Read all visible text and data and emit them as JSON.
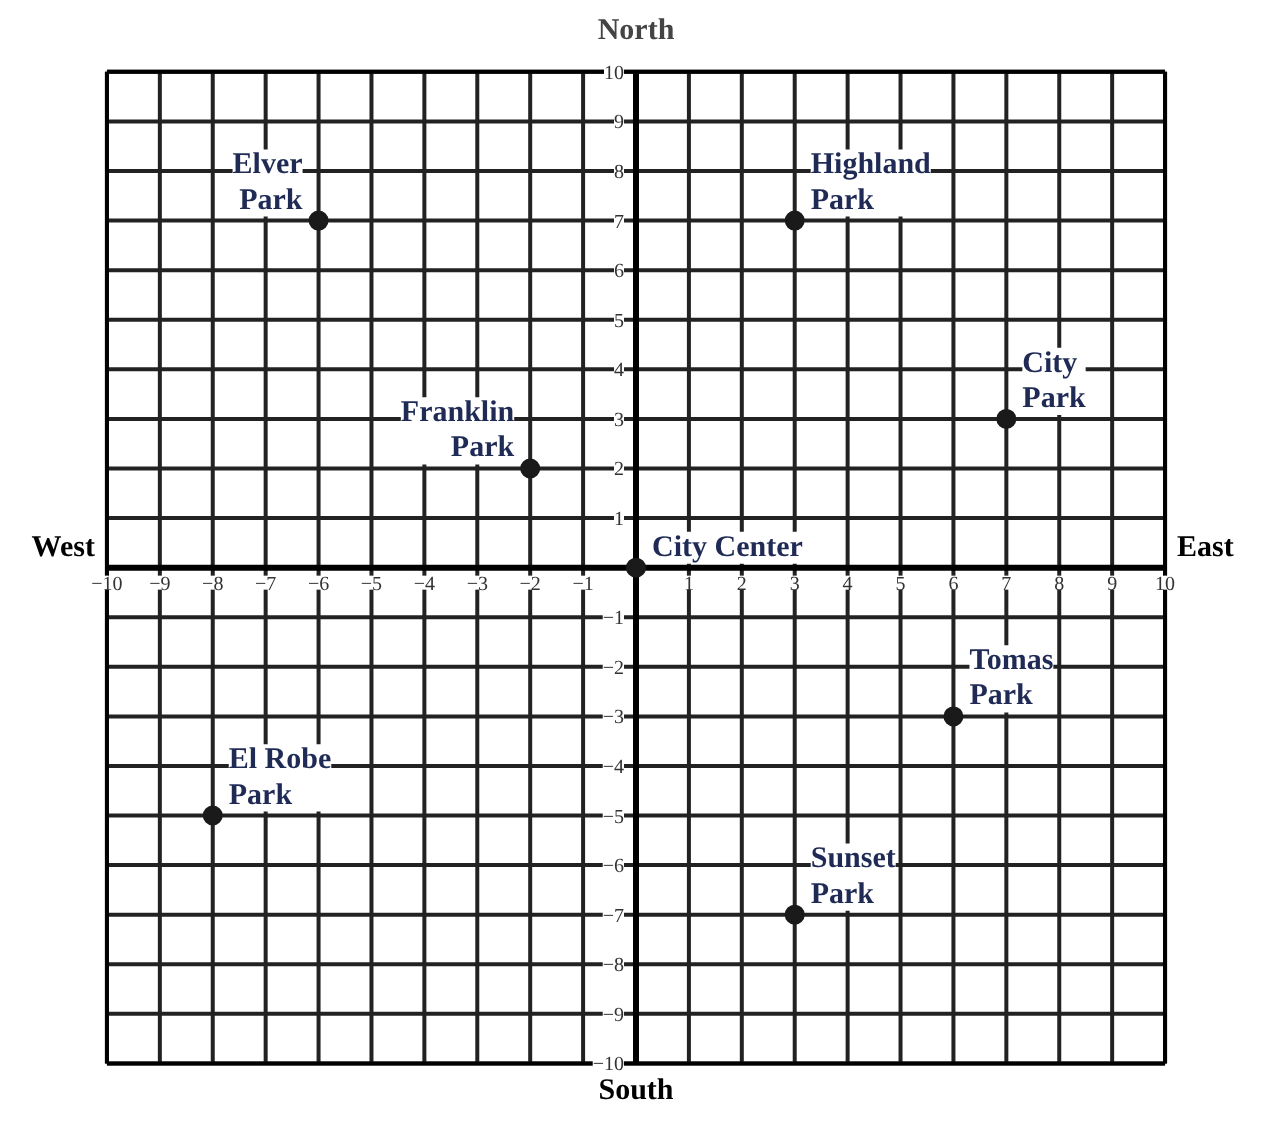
{
  "chart_data": {
    "type": "scatter",
    "title": "North",
    "xlabel": "South",
    "ylabel": "West",
    "y2label": "East",
    "x": [
      -6,
      3,
      7,
      -2,
      0,
      6,
      -8,
      3
    ],
    "series": [
      {
        "color": "#1a1a1a",
        "values": [
          7,
          7,
          3,
          2,
          0,
          -3,
          -5,
          -7
        ]
      }
    ],
    "marker": "circle",
    "xlim": [
      -10,
      10
    ],
    "ylim": [
      -10,
      10
    ],
    "xticks": [
      -10,
      -9,
      -8,
      -7,
      -6,
      -5,
      -4,
      -3,
      -2,
      -1,
      {
        "value": 0,
        "label": null
      },
      1,
      2,
      3,
      4,
      5,
      6,
      7,
      8,
      9,
      10
    ],
    "yticks": [
      -10,
      -9,
      -8,
      -7,
      -6,
      -5,
      -4,
      -3,
      -2,
      -1,
      {
        "value": 0,
        "label": null
      },
      1,
      2,
      3,
      4,
      5,
      6,
      7,
      8,
      9,
      10
    ],
    "grid": true,
    "annotations": [
      {
        "text": "Elver\nPark",
        "x": -6,
        "y": 7
      },
      {
        "text": "Highland\nPark",
        "x": 3,
        "y": 7
      },
      {
        "text": "City\nPark",
        "x": 7,
        "y": 3
      },
      {
        "text": "Franklin\nPark",
        "x": -2,
        "y": 2
      },
      {
        "text": "City Center",
        "x": 0,
        "y": 0
      },
      {
        "text": "Tomas\nPark",
        "x": 6,
        "y": -3
      },
      {
        "text": "El Robe\nPark",
        "x": -8,
        "y": -5
      },
      {
        "text": "Sunset\nPark",
        "x": 3,
        "y": -7
      }
    ]
  }
}
